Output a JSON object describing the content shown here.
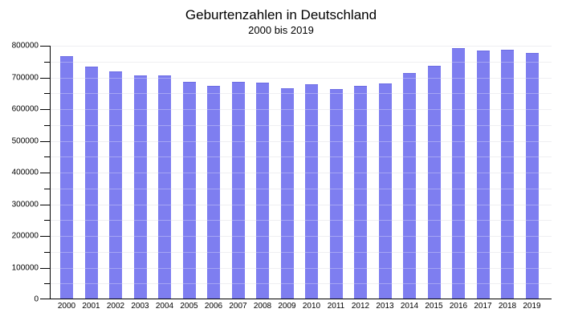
{
  "page": {
    "title": "Geburtenzahlen in Deutschland",
    "subtitle": "2000 bis 2019"
  },
  "chart_data": {
    "type": "bar",
    "title": "Geburtenzahlen in Deutschland",
    "subtitle": "2000 bis 2019",
    "categories": [
      "2000",
      "2001",
      "2002",
      "2003",
      "2004",
      "2005",
      "2006",
      "2007",
      "2008",
      "2009",
      "2010",
      "2011",
      "2012",
      "2013",
      "2014",
      "2015",
      "2016",
      "2017",
      "2018",
      "2019"
    ],
    "values": [
      766999,
      734475,
      719250,
      706721,
      705622,
      685795,
      672724,
      684862,
      682514,
      665126,
      677947,
      662685,
      673544,
      682069,
      714927,
      737575,
      792131,
      784901,
      787523,
      778090
    ],
    "xlabel": "",
    "ylabel": "",
    "ylim": [
      0,
      800000
    ],
    "ytick_step": 100000,
    "yminor_step": 50000,
    "ytick_labels": [
      "0",
      "100000",
      "200000",
      "300000",
      "400000",
      "500000",
      "600000",
      "700000",
      "800000"
    ],
    "grid": true,
    "legend": "none",
    "bar_color": "#7e7ef0",
    "bar_edge_color": "#6c6ce4",
    "axis_color": "#000000",
    "grid_color": "#e8e8ed"
  }
}
